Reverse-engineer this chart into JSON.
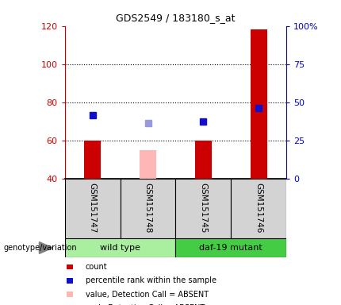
{
  "title": "GDS2549 / 183180_s_at",
  "samples": [
    "GSM151747",
    "GSM151748",
    "GSM151745",
    "GSM151746"
  ],
  "bar_values": [
    60,
    55,
    60,
    118
  ],
  "bar_bottom": 40,
  "bar_colors": [
    "#cc0000",
    "#ffb6b6",
    "#cc0000",
    "#cc0000"
  ],
  "dot_values": [
    73,
    69,
    70,
    77
  ],
  "dot_colors": [
    "#1010cc",
    "#9999dd",
    "#1010cc",
    "#1010cc"
  ],
  "ylim_left": [
    40,
    120
  ],
  "ylim_right": [
    0,
    100
  ],
  "yticks_left": [
    40,
    60,
    80,
    100,
    120
  ],
  "yticks_right": [
    0,
    25,
    50,
    75,
    100
  ],
  "ytick_labels_left": [
    "40",
    "60",
    "80",
    "100",
    "120"
  ],
  "ytick_labels_right": [
    "0",
    "25",
    "50",
    "75",
    "100%"
  ],
  "left_axis_color": "#cc0000",
  "right_axis_color": "#0000cc",
  "bg_color": "#ffffff",
  "group_label": "genotype/variation",
  "group1_name": "wild type",
  "group1_color": "#aaeea0",
  "group2_name": "daf-19 mutant",
  "group2_color": "#44cc44",
  "sample_bg": "#d3d3d3",
  "legend": [
    {
      "label": "count",
      "color": "#cc0000",
      "type": "square"
    },
    {
      "label": "percentile rank within the sample",
      "color": "#1010cc",
      "type": "square"
    },
    {
      "label": "value, Detection Call = ABSENT",
      "color": "#ffb6b6",
      "type": "square"
    },
    {
      "label": "rank, Detection Call = ABSENT",
      "color": "#9999dd",
      "type": "square"
    }
  ],
  "bar_width": 0.3,
  "dot_size": 6
}
